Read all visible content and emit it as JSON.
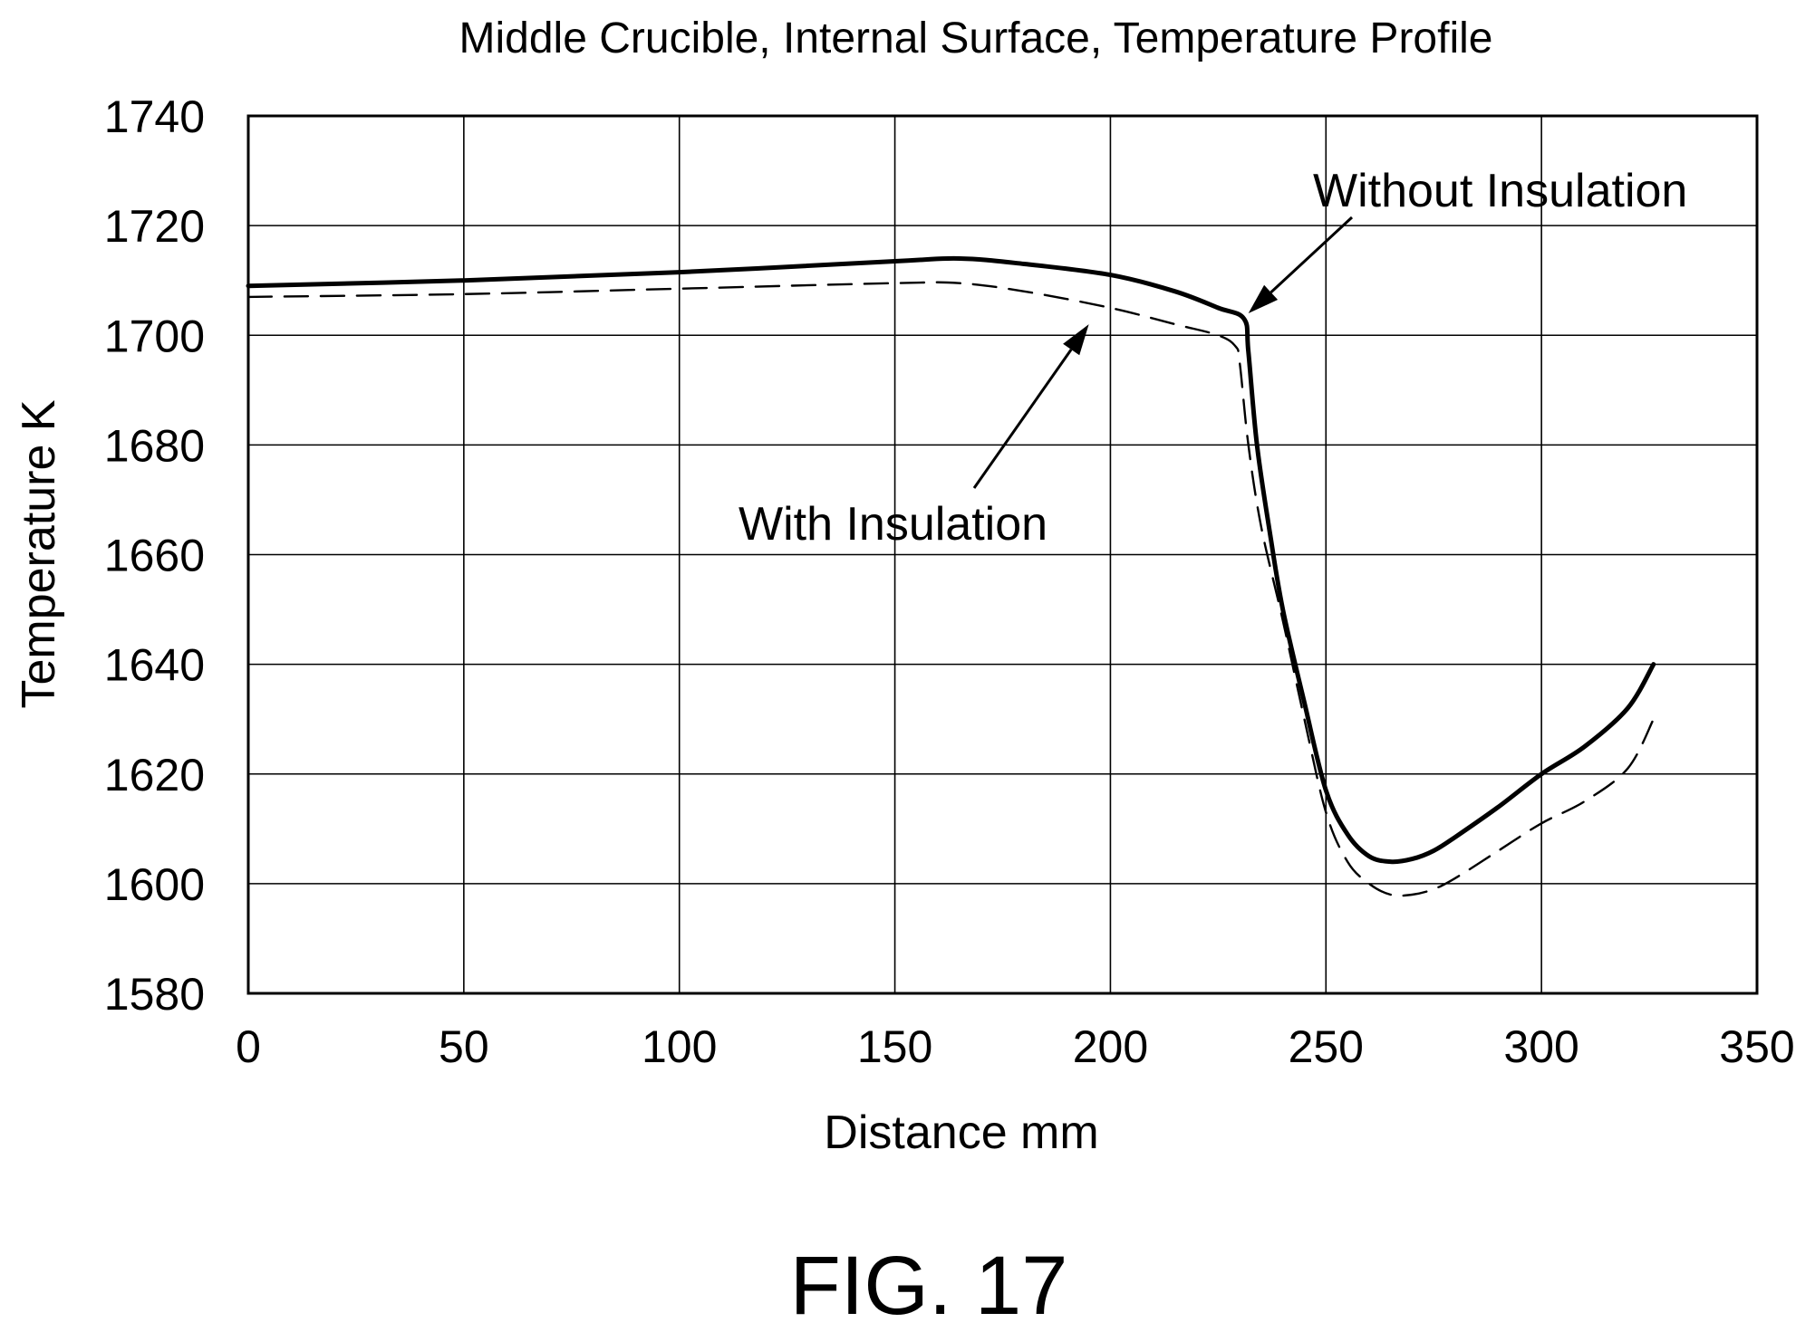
{
  "chart_data": {
    "type": "line",
    "title": "Middle Crucible, Internal Surface, Temperature Profile",
    "xlabel": "Distance mm",
    "ylabel": "Temperature K",
    "xlim": [
      0,
      350
    ],
    "ylim": [
      1580,
      1740
    ],
    "x_ticks": [
      0,
      50,
      100,
      150,
      200,
      250,
      300,
      350
    ],
    "y_ticks": [
      1580,
      1600,
      1620,
      1640,
      1660,
      1680,
      1700,
      1720,
      1740
    ],
    "x_tick_labels": [
      "0",
      "50",
      "100",
      "150",
      "200",
      "250",
      "300",
      "350"
    ],
    "y_tick_labels": [
      "1580",
      "1600",
      "1620",
      "1640",
      "1660",
      "1680",
      "1700",
      "1720",
      "1740"
    ],
    "grid": true,
    "legend": "none",
    "series": [
      {
        "name": "Without Insulation",
        "line_style": "solid",
        "x": [
          0,
          50,
          100,
          150,
          165,
          180,
          200,
          215,
          225,
          231,
          232,
          234,
          237,
          240,
          245,
          250,
          255,
          260,
          265,
          270,
          275,
          280,
          290,
          300,
          310,
          320,
          326
        ],
        "y": [
          1709,
          1710,
          1711.5,
          1713.5,
          1714,
          1713,
          1711,
          1708,
          1705,
          1703,
          1697,
          1680,
          1664,
          1650,
          1633,
          1617,
          1609,
          1605,
          1604,
          1604.5,
          1606,
          1608.5,
          1614,
          1620,
          1625,
          1632,
          1640
        ]
      },
      {
        "name": "With Insulation",
        "line_style": "dashed",
        "x": [
          0,
          50,
          100,
          150,
          165,
          180,
          200,
          215,
          225,
          229,
          230,
          232,
          235,
          240,
          245,
          250,
          255,
          260,
          265,
          270,
          275,
          280,
          290,
          300,
          310,
          320,
          326
        ],
        "y": [
          1707,
          1707.5,
          1708.5,
          1709.5,
          1709.5,
          1708,
          1705,
          1702,
          1700,
          1698,
          1695,
          1680,
          1665,
          1648,
          1630,
          1613,
          1604,
          1600,
          1598,
          1598,
          1599,
          1601,
          1606,
          1611,
          1615,
          1621,
          1630
        ]
      }
    ],
    "annotations": [
      {
        "text": "Without Insulation",
        "arrow_target": {
          "x": 232,
          "y": 1704
        }
      },
      {
        "text": "With Insulation",
        "arrow_target": {
          "x": 195,
          "y": 1702
        }
      }
    ]
  },
  "figure": {
    "caption": "FIG. 17"
  }
}
